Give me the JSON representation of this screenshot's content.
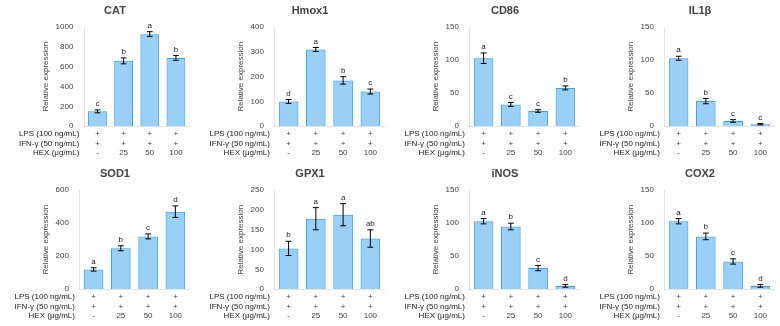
{
  "chart_data": [
    {
      "type": "bar",
      "title": "CAT",
      "ylabel": "Relative expression",
      "categories": [
        [
          "+",
          "+",
          "-"
        ],
        [
          "+",
          "+",
          "25"
        ],
        [
          "+",
          "+",
          "50"
        ],
        [
          "+",
          "+",
          "100"
        ]
      ],
      "values": [
        150,
        660,
        930,
        690
      ],
      "errors": [
        15,
        30,
        25,
        25
      ],
      "ylim": [
        0,
        1000
      ],
      "yticks": [
        0,
        200,
        400,
        600,
        800,
        1000
      ],
      "grid": false,
      "annotations": {
        "bars": [
          "c",
          "b",
          "a",
          "b"
        ],
        "rows": [
          "LPS (100 ng/mL)",
          "IFN-γ (50 ng/mL)",
          "HEX (μg/mL)"
        ]
      }
    },
    {
      "type": "bar",
      "title": "Hmox1",
      "ylabel": "Relative expression",
      "categories": [
        [
          "+",
          "+",
          "-"
        ],
        [
          "+",
          "+",
          "25"
        ],
        [
          "+",
          "+",
          "50"
        ],
        [
          "+",
          "+",
          "100"
        ]
      ],
      "values": [
        100,
        310,
        185,
        140
      ],
      "errors": [
        8,
        8,
        15,
        10
      ],
      "ylim": [
        0,
        400
      ],
      "yticks": [
        0,
        100,
        200,
        300,
        400
      ],
      "grid": false,
      "annotations": {
        "bars": [
          "d",
          "a",
          "b",
          "c"
        ],
        "rows": [
          "LPS (100 ng/mL)",
          "IFN-γ (50 ng/mL)",
          "HEX (μg/mL)"
        ]
      }
    },
    {
      "type": "bar",
      "title": "CD86",
      "ylabel": "Relative expression",
      "categories": [
        [
          "+",
          "+",
          "-"
        ],
        [
          "+",
          "+",
          "25"
        ],
        [
          "+",
          "+",
          "50"
        ],
        [
          "+",
          "+",
          "100"
        ]
      ],
      "values": [
        103,
        33,
        23,
        58
      ],
      "errors": [
        8,
        3,
        2,
        3
      ],
      "ylim": [
        0,
        150
      ],
      "yticks": [
        0,
        50,
        100,
        150
      ],
      "grid": false,
      "annotations": {
        "bars": [
          "a",
          "c",
          "c",
          "b"
        ],
        "rows": [
          "LPS (100 ng/mL)",
          "IFN-γ (50 ng/mL)",
          "HEX (μg/mL)"
        ]
      }
    },
    {
      "type": "bar",
      "title": "IL1β",
      "ylabel": "Relative expression",
      "categories": [
        [
          "+",
          "+",
          "-"
        ],
        [
          "+",
          "+",
          "25"
        ],
        [
          "+",
          "+",
          "50"
        ],
        [
          "+",
          "+",
          "100"
        ]
      ],
      "values": [
        103,
        38,
        8,
        3
      ],
      "errors": [
        3,
        4,
        2,
        1
      ],
      "ylim": [
        0,
        150
      ],
      "yticks": [
        0,
        50,
        100,
        150
      ],
      "grid": false,
      "annotations": {
        "bars": [
          "a",
          "b",
          "c",
          "c"
        ],
        "rows": [
          "LPS (100 ng/mL)",
          "IFN-γ (50 ng/mL)",
          "HEX (μg/mL)"
        ]
      }
    },
    {
      "type": "bar",
      "title": "SOD1",
      "ylabel": "Relative expression",
      "categories": [
        [
          "+",
          "+",
          "-"
        ],
        [
          "+",
          "+",
          "25"
        ],
        [
          "+",
          "+",
          "50"
        ],
        [
          "+",
          "+",
          "100"
        ]
      ],
      "values": [
        120,
        248,
        320,
        470
      ],
      "errors": [
        10,
        15,
        15,
        35
      ],
      "ylim": [
        0,
        600
      ],
      "yticks": [
        0,
        200,
        400,
        600
      ],
      "grid": false,
      "annotations": {
        "bars": [
          "a",
          "b",
          "c",
          "d"
        ],
        "rows": [
          "LPS (100 ng/mL)",
          "IFN-γ (50 ng/mL)",
          "HEX (μg/mL)"
        ]
      }
    },
    {
      "type": "bar",
      "title": "GPX1",
      "ylabel": "Relative expression",
      "categories": [
        [
          "+",
          "+",
          "-"
        ],
        [
          "+",
          "+",
          "25"
        ],
        [
          "+",
          "+",
          "50"
        ],
        [
          "+",
          "+",
          "100"
        ]
      ],
      "values": [
        103,
        178,
        188,
        128
      ],
      "errors": [
        18,
        28,
        28,
        22
      ],
      "ylim": [
        0,
        250
      ],
      "yticks": [
        0,
        50,
        100,
        150,
        200,
        250
      ],
      "grid": false,
      "annotations": {
        "bars": [
          "b",
          "a",
          "a",
          "ab"
        ],
        "rows": [
          "LPS (100 ng/mL)",
          "IFN-γ (50 ng/mL)",
          "HEX (μg/mL)"
        ]
      }
    },
    {
      "type": "bar",
      "title": "iNOS",
      "ylabel": "Relative expression",
      "categories": [
        [
          "+",
          "+",
          "-"
        ],
        [
          "+",
          "+",
          "25"
        ],
        [
          "+",
          "+",
          "50"
        ],
        [
          "+",
          "+",
          "100"
        ]
      ],
      "values": [
        103,
        95,
        32,
        5
      ],
      "errors": [
        4,
        5,
        4,
        2
      ],
      "ylim": [
        0,
        150
      ],
      "yticks": [
        0,
        50,
        100,
        150
      ],
      "grid": false,
      "annotations": {
        "bars": [
          "a",
          "b",
          "c",
          "d"
        ],
        "rows": [
          "LPS (100 ng/mL)",
          "IFN-γ (50 ng/mL)",
          "HEX (μg/mL)"
        ]
      }
    },
    {
      "type": "bar",
      "title": "COX2",
      "ylabel": "Relative expression",
      "categories": [
        [
          "+",
          "+",
          "-"
        ],
        [
          "+",
          "+",
          "25"
        ],
        [
          "+",
          "+",
          "50"
        ],
        [
          "+",
          "+",
          "100"
        ]
      ],
      "values": [
        103,
        80,
        42,
        5
      ],
      "errors": [
        4,
        5,
        4,
        2
      ],
      "ylim": [
        0,
        150
      ],
      "yticks": [
        0,
        50,
        100,
        150
      ],
      "grid": false,
      "annotations": {
        "bars": [
          "a",
          "b",
          "c",
          "d"
        ],
        "rows": [
          "LPS (100 ng/mL)",
          "IFN-γ (50 ng/mL)",
          "HEX (μg/mL)"
        ]
      }
    }
  ]
}
